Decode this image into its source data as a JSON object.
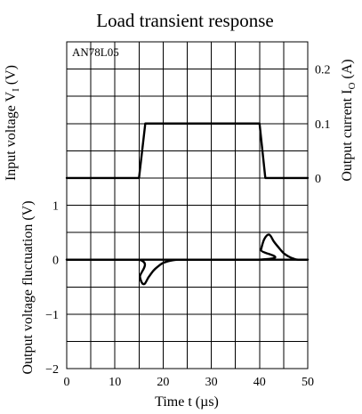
{
  "chart_data": {
    "type": "line",
    "title": "Load transient response",
    "device_label": "AN78L05",
    "xlabel": "Time  t  (µs)",
    "xlim": [
      0,
      50
    ],
    "x_ticks": [
      "0",
      "10",
      "20",
      "30",
      "40",
      "50"
    ],
    "left_axis_labels": [
      "Input voltage  V",
      "Output voltage fluctuation  (V)"
    ],
    "left_axis_subscript": "I",
    "left_axis_suffix": "  (V)",
    "lower_ylim": [
      -2,
      1
    ],
    "lower_y_ticks": [
      "1",
      "0",
      "−1",
      "−2"
    ],
    "right_axis_label": "Output current  I",
    "right_axis_subscript": "O",
    "right_axis_suffix": "  (A)",
    "right_ylim": [
      0,
      0.2
    ],
    "right_y_ticks": [
      "0.2",
      "0.1",
      "0"
    ],
    "grid": true,
    "series": [
      {
        "axis": "right",
        "x": [
          0,
          15,
          16.3,
          40,
          41.2,
          50
        ],
        "y": [
          0,
          0,
          0.1,
          0.1,
          0,
          0
        ]
      },
      {
        "axis": "lower",
        "x": [
          0,
          15,
          15.2,
          16,
          17,
          18,
          19,
          20,
          21,
          22,
          23,
          24,
          50
        ],
        "y": [
          0,
          0,
          -0.32,
          -0.45,
          -0.32,
          -0.2,
          -0.12,
          -0.06,
          -0.03,
          -0.01,
          0,
          0,
          0
        ]
      },
      {
        "axis": "lower",
        "x": [
          0,
          40,
          40.3,
          41,
          42,
          43,
          44,
          45,
          46,
          47,
          48,
          50
        ],
        "y": [
          0,
          0,
          0.18,
          0.38,
          0.46,
          0.33,
          0.22,
          0.12,
          0.06,
          0.02,
          0,
          0
        ]
      }
    ]
  }
}
